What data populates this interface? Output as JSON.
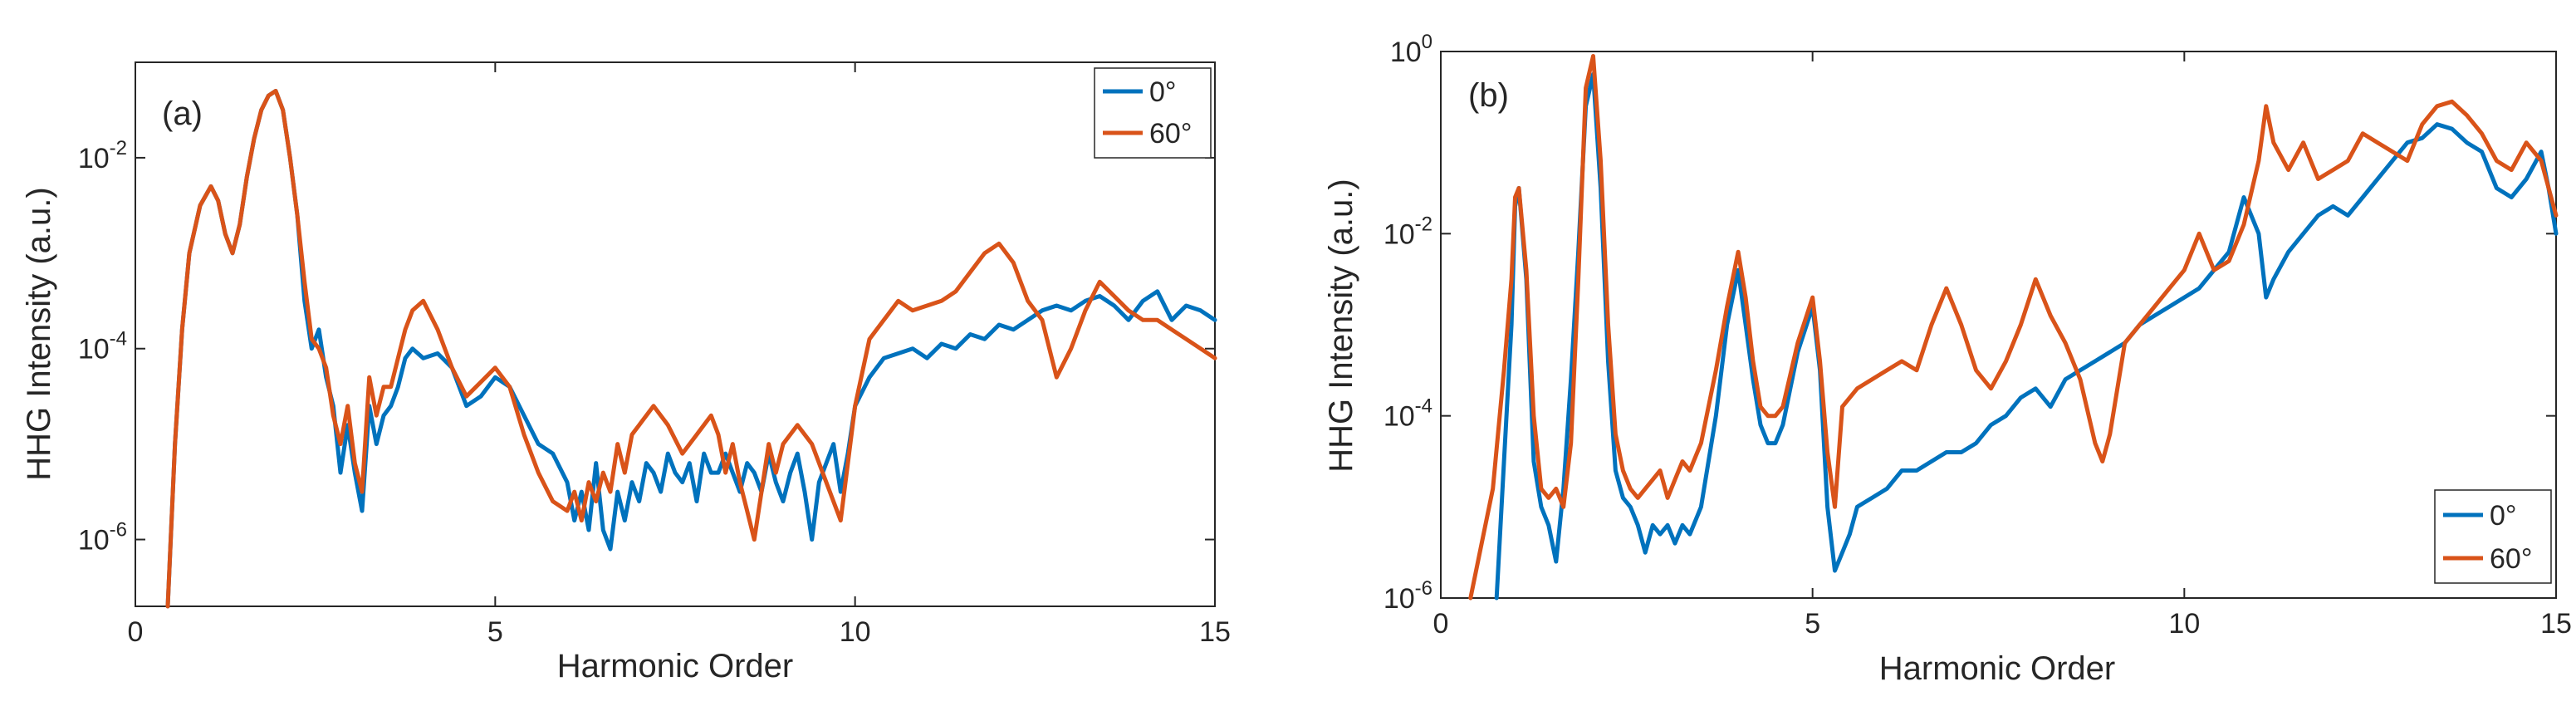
{
  "chart_data": [
    {
      "type": "line",
      "panel_label": "(a)",
      "xlabel": "Harmonic Order",
      "ylabel": "HHG Intensity (a.u.)",
      "xlim": [
        0,
        15
      ],
      "ylim_log10": [
        -6.7,
        -1.0
      ],
      "yscale": "log",
      "x_ticks": [
        0,
        5,
        10,
        15
      ],
      "x_tick_labels": [
        "0",
        "5",
        "10",
        "15"
      ],
      "y_ticks_log10": [
        -6,
        -4,
        -2
      ],
      "y_tick_labels": [
        {
          "base": "10",
          "exp": "-6"
        },
        {
          "base": "10",
          "exp": "-4"
        },
        {
          "base": "10",
          "exp": "-2"
        }
      ],
      "legend_position": "top-right",
      "series": [
        {
          "name": "0°",
          "color": "#0072BD",
          "x": [
            0.45,
            0.55,
            0.65,
            0.75,
            0.9,
            1.05,
            1.15,
            1.25,
            1.35,
            1.45,
            1.55,
            1.65,
            1.75,
            1.85,
            1.95,
            2.05,
            2.15,
            2.25,
            2.35,
            2.45,
            2.55,
            2.65,
            2.75,
            2.85,
            2.95,
            3.05,
            3.15,
            3.25,
            3.35,
            3.45,
            3.55,
            3.65,
            3.75,
            3.85,
            4.0,
            4.2,
            4.4,
            4.6,
            4.8,
            5.0,
            5.2,
            5.4,
            5.6,
            5.8,
            6.0,
            6.1,
            6.2,
            6.3,
            6.4,
            6.5,
            6.6,
            6.7,
            6.8,
            6.9,
            7.0,
            7.1,
            7.2,
            7.3,
            7.4,
            7.5,
            7.6,
            7.7,
            7.8,
            7.9,
            8.0,
            8.1,
            8.2,
            8.3,
            8.4,
            8.5,
            8.6,
            8.7,
            8.8,
            8.9,
            9.0,
            9.1,
            9.2,
            9.3,
            9.4,
            9.5,
            9.6,
            9.7,
            9.8,
            9.9,
            10.0,
            10.2,
            10.4,
            10.6,
            10.8,
            11.0,
            11.2,
            11.4,
            11.6,
            11.8,
            12.0,
            12.2,
            12.4,
            12.6,
            12.8,
            13.0,
            13.2,
            13.4,
            13.6,
            13.8,
            14.0,
            14.2,
            14.4,
            14.6,
            14.8,
            15.0
          ],
          "log10_y": [
            -6.7,
            -5.0,
            -3.8,
            -3.0,
            -2.5,
            -2.3,
            -2.45,
            -2.8,
            -3.0,
            -2.7,
            -2.2,
            -1.8,
            -1.5,
            -1.35,
            -1.3,
            -1.5,
            -2.0,
            -2.6,
            -3.5,
            -4.0,
            -3.8,
            -4.3,
            -4.6,
            -5.3,
            -4.8,
            -5.3,
            -5.7,
            -4.6,
            -5.0,
            -4.7,
            -4.6,
            -4.4,
            -4.1,
            -4.0,
            -4.1,
            -4.05,
            -4.2,
            -4.6,
            -4.5,
            -4.3,
            -4.4,
            -4.7,
            -5.0,
            -5.1,
            -5.4,
            -5.8,
            -5.5,
            -5.9,
            -5.2,
            -5.9,
            -6.1,
            -5.5,
            -5.8,
            -5.4,
            -5.6,
            -5.2,
            -5.3,
            -5.5,
            -5.1,
            -5.3,
            -5.4,
            -5.2,
            -5.6,
            -5.1,
            -5.3,
            -5.3,
            -5.1,
            -5.3,
            -5.5,
            -5.2,
            -5.3,
            -5.5,
            -5.1,
            -5.4,
            -5.6,
            -5.3,
            -5.1,
            -5.5,
            -6.0,
            -5.4,
            -5.2,
            -5.0,
            -5.5,
            -5.1,
            -4.6,
            -4.3,
            -4.1,
            -4.05,
            -4.0,
            -4.1,
            -3.95,
            -4.0,
            -3.85,
            -3.9,
            -3.75,
            -3.8,
            -3.7,
            -3.6,
            -3.55,
            -3.6,
            -3.5,
            -3.45,
            -3.55,
            -3.7,
            -3.5,
            -3.4,
            -3.7,
            -3.55,
            -3.6,
            -3.7
          ]
        },
        {
          "name": "60°",
          "color": "#D95319",
          "x": [
            0.45,
            0.55,
            0.65,
            0.75,
            0.9,
            1.05,
            1.15,
            1.25,
            1.35,
            1.45,
            1.55,
            1.65,
            1.75,
            1.85,
            1.95,
            2.05,
            2.15,
            2.25,
            2.35,
            2.45,
            2.55,
            2.65,
            2.75,
            2.85,
            2.95,
            3.05,
            3.15,
            3.25,
            3.35,
            3.45,
            3.55,
            3.65,
            3.75,
            3.85,
            4.0,
            4.2,
            4.4,
            4.6,
            4.8,
            5.0,
            5.2,
            5.4,
            5.6,
            5.8,
            6.0,
            6.1,
            6.2,
            6.3,
            6.4,
            6.5,
            6.6,
            6.7,
            6.8,
            6.9,
            7.0,
            7.2,
            7.4,
            7.6,
            7.8,
            8.0,
            8.1,
            8.2,
            8.3,
            8.4,
            8.5,
            8.6,
            8.7,
            8.8,
            8.9,
            9.0,
            9.2,
            9.4,
            9.6,
            9.8,
            10.0,
            10.2,
            10.4,
            10.6,
            10.8,
            11.0,
            11.2,
            11.4,
            11.6,
            11.8,
            12.0,
            12.2,
            12.4,
            12.6,
            12.8,
            13.0,
            13.2,
            13.4,
            13.6,
            13.8,
            14.0,
            14.2,
            14.4,
            14.6,
            14.8,
            15.0
          ],
          "log10_y": [
            -6.7,
            -5.0,
            -3.8,
            -3.0,
            -2.5,
            -2.3,
            -2.45,
            -2.8,
            -3.0,
            -2.7,
            -2.2,
            -1.8,
            -1.5,
            -1.35,
            -1.3,
            -1.5,
            -2.0,
            -2.6,
            -3.3,
            -3.9,
            -4.0,
            -4.2,
            -4.7,
            -5.0,
            -4.6,
            -5.2,
            -5.5,
            -4.3,
            -4.7,
            -4.4,
            -4.4,
            -4.1,
            -3.8,
            -3.6,
            -3.5,
            -3.8,
            -4.2,
            -4.5,
            -4.35,
            -4.2,
            -4.4,
            -4.9,
            -5.3,
            -5.6,
            -5.7,
            -5.5,
            -5.8,
            -5.4,
            -5.6,
            -5.3,
            -5.5,
            -5.0,
            -5.3,
            -4.9,
            -4.8,
            -4.6,
            -4.8,
            -5.1,
            -4.9,
            -4.7,
            -4.9,
            -5.3,
            -5.0,
            -5.4,
            -5.7,
            -6.0,
            -5.5,
            -5.0,
            -5.3,
            -5.0,
            -4.8,
            -5.0,
            -5.4,
            -5.8,
            -4.6,
            -3.9,
            -3.7,
            -3.5,
            -3.6,
            -3.55,
            -3.5,
            -3.4,
            -3.2,
            -3.0,
            -2.9,
            -3.1,
            -3.5,
            -3.7,
            -4.3,
            -4.0,
            -3.6,
            -3.3,
            -3.45,
            -3.6,
            -3.7,
            -3.7,
            -3.8,
            -3.9,
            -4.0,
            -4.1
          ]
        }
      ]
    },
    {
      "type": "line",
      "panel_label": "(b)",
      "xlabel": "Harmonic Order",
      "ylabel": "HHG Intensity (a.u.)",
      "xlim": [
        0,
        15
      ],
      "ylim_log10": [
        -6.0,
        0.0
      ],
      "yscale": "log",
      "x_ticks": [
        0,
        5,
        10,
        15
      ],
      "x_tick_labels": [
        "0",
        "5",
        "10",
        "15"
      ],
      "y_ticks_log10": [
        -6,
        -4,
        -2,
        0
      ],
      "y_tick_labels": [
        {
          "base": "10",
          "exp": "-6"
        },
        {
          "base": "10",
          "exp": "-4"
        },
        {
          "base": "10",
          "exp": "-2"
        },
        {
          "base": "10",
          "exp": "0"
        }
      ],
      "legend_position": "bottom-right",
      "series": [
        {
          "name": "0°",
          "color": "#0072BD",
          "x": [
            0.75,
            0.85,
            0.95,
            1.0,
            1.05,
            1.15,
            1.25,
            1.35,
            1.45,
            1.55,
            1.65,
            1.75,
            1.85,
            1.95,
            2.05,
            2.15,
            2.25,
            2.35,
            2.45,
            2.55,
            2.65,
            2.75,
            2.85,
            2.95,
            3.05,
            3.15,
            3.25,
            3.35,
            3.5,
            3.7,
            3.85,
            4.0,
            4.1,
            4.2,
            4.3,
            4.4,
            4.5,
            4.6,
            4.8,
            5.0,
            5.1,
            5.2,
            5.3,
            5.4,
            5.5,
            5.6,
            5.8,
            6.0,
            6.2,
            6.4,
            6.6,
            6.8,
            7.0,
            7.2,
            7.4,
            7.6,
            7.8,
            8.0,
            8.2,
            8.4,
            8.6,
            8.8,
            9.0,
            9.2,
            9.4,
            9.6,
            9.8,
            10.0,
            10.2,
            10.4,
            10.6,
            10.8,
            11.0,
            11.1,
            11.2,
            11.4,
            11.6,
            11.8,
            12.0,
            12.2,
            12.4,
            12.6,
            12.8,
            13.0,
            13.2,
            13.4,
            13.6,
            13.8,
            14.0,
            14.2,
            14.4,
            14.6,
            14.8,
            14.9,
            15.0
          ],
          "log10_y": [
            -6.0,
            -4.5,
            -3.0,
            -1.7,
            -1.5,
            -2.5,
            -4.5,
            -5.0,
            -5.2,
            -5.6,
            -4.8,
            -3.6,
            -2.2,
            -0.6,
            -0.25,
            -1.5,
            -3.4,
            -4.6,
            -4.9,
            -5.0,
            -5.2,
            -5.5,
            -5.2,
            -5.3,
            -5.2,
            -5.4,
            -5.2,
            -5.3,
            -5.0,
            -4.0,
            -3.0,
            -2.4,
            -3.0,
            -3.6,
            -4.1,
            -4.3,
            -4.3,
            -4.1,
            -3.3,
            -2.8,
            -3.5,
            -5.0,
            -5.7,
            -5.5,
            -5.3,
            -5.0,
            -4.9,
            -4.8,
            -4.6,
            -4.6,
            -4.5,
            -4.4,
            -4.4,
            -4.3,
            -4.1,
            -4.0,
            -3.8,
            -3.7,
            -3.9,
            -3.6,
            -3.5,
            -3.4,
            -3.3,
            -3.2,
            -3.0,
            -2.9,
            -2.8,
            -2.7,
            -2.6,
            -2.4,
            -2.2,
            -1.6,
            -2.0,
            -2.7,
            -2.5,
            -2.2,
            -2.0,
            -1.8,
            -1.7,
            -1.8,
            -1.6,
            -1.4,
            -1.2,
            -1.0,
            -0.95,
            -0.8,
            -0.85,
            -1.0,
            -1.1,
            -1.5,
            -1.6,
            -1.4,
            -1.1,
            -1.5,
            -2.0
          ]
        },
        {
          "name": "60°",
          "color": "#D95319",
          "x": [
            0.4,
            0.55,
            0.7,
            0.85,
            0.95,
            1.0,
            1.05,
            1.15,
            1.25,
            1.35,
            1.45,
            1.55,
            1.65,
            1.75,
            1.85,
            1.95,
            2.05,
            2.15,
            2.25,
            2.35,
            2.45,
            2.55,
            2.65,
            2.75,
            2.85,
            2.95,
            3.05,
            3.15,
            3.25,
            3.35,
            3.5,
            3.7,
            3.85,
            4.0,
            4.1,
            4.2,
            4.3,
            4.4,
            4.5,
            4.6,
            4.8,
            5.0,
            5.1,
            5.2,
            5.3,
            5.4,
            5.6,
            5.8,
            6.0,
            6.2,
            6.4,
            6.6,
            6.8,
            7.0,
            7.2,
            7.4,
            7.6,
            7.8,
            8.0,
            8.2,
            8.4,
            8.6,
            8.8,
            8.9,
            9.0,
            9.2,
            9.4,
            9.6,
            9.8,
            10.0,
            10.2,
            10.4,
            10.6,
            10.8,
            11.0,
            11.1,
            11.2,
            11.4,
            11.6,
            11.8,
            12.0,
            12.2,
            12.4,
            12.6,
            12.8,
            13.0,
            13.2,
            13.4,
            13.6,
            13.8,
            14.0,
            14.2,
            14.4,
            14.6,
            14.8,
            15.0
          ],
          "log10_y": [
            -6.0,
            -5.4,
            -4.8,
            -3.5,
            -2.5,
            -1.6,
            -1.5,
            -2.4,
            -4.0,
            -4.8,
            -4.9,
            -4.8,
            -5.0,
            -4.3,
            -2.5,
            -0.4,
            -0.05,
            -1.2,
            -3.0,
            -4.2,
            -4.6,
            -4.8,
            -4.9,
            -4.8,
            -4.7,
            -4.6,
            -4.9,
            -4.7,
            -4.5,
            -4.6,
            -4.3,
            -3.5,
            -2.8,
            -2.2,
            -2.7,
            -3.4,
            -3.9,
            -4.0,
            -4.0,
            -3.9,
            -3.2,
            -2.7,
            -3.4,
            -4.4,
            -5.0,
            -3.9,
            -3.7,
            -3.6,
            -3.5,
            -3.4,
            -3.5,
            -3.0,
            -2.6,
            -3.0,
            -3.5,
            -3.7,
            -3.4,
            -3.0,
            -2.5,
            -2.9,
            -3.2,
            -3.6,
            -4.3,
            -4.5,
            -4.2,
            -3.2,
            -3.0,
            -2.8,
            -2.6,
            -2.4,
            -2.0,
            -2.4,
            -2.3,
            -1.9,
            -1.2,
            -0.6,
            -1.0,
            -1.3,
            -1.0,
            -1.4,
            -1.3,
            -1.2,
            -0.9,
            -1.0,
            -1.1,
            -1.2,
            -0.8,
            -0.6,
            -0.55,
            -0.7,
            -0.9,
            -1.2,
            -1.3,
            -1.0,
            -1.2,
            -1.8
          ]
        }
      ]
    }
  ]
}
